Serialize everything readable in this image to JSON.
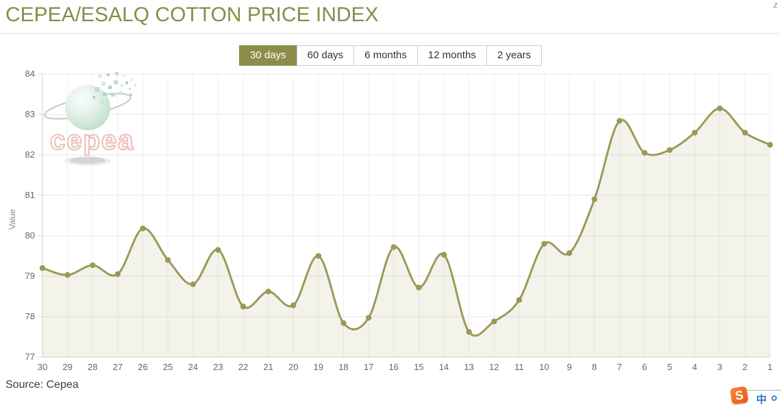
{
  "header": {
    "title": "CEPEA/ESALQ COTTON PRICE INDEX"
  },
  "tabs": [
    {
      "label": "30 days",
      "selected": true
    },
    {
      "label": "60 days",
      "selected": false
    },
    {
      "label": "6 months",
      "selected": false
    },
    {
      "label": "12 months",
      "selected": false
    },
    {
      "label": "2 years",
      "selected": false
    }
  ],
  "logo": {
    "text": "cepea"
  },
  "footer": {
    "source": "Source: Cepea"
  },
  "ime": {
    "s": "S",
    "zh": "中"
  },
  "corner_mark": "z",
  "colors": {
    "accent": "#8d8d4b",
    "title": "#8b8b49",
    "line": "#9a9a58",
    "marker": "#9a9a58",
    "fill": "rgba(154,154,88,0.12)",
    "grid_h": "#e7e7e7",
    "grid_v": "#efefef",
    "axis": "#d0d0d0",
    "tick_text": "#666666",
    "ylabel_text": "#888888"
  },
  "chart_data": {
    "type": "area",
    "title": "CEPEA/ESALQ COTTON PRICE INDEX",
    "xlabel": "",
    "ylabel": "Value",
    "x": [
      30,
      29,
      28,
      27,
      26,
      25,
      24,
      23,
      22,
      21,
      20,
      19,
      18,
      17,
      16,
      15,
      14,
      13,
      12,
      11,
      10,
      9,
      8,
      7,
      6,
      5,
      4,
      3,
      2,
      1
    ],
    "values": [
      79.2,
      79.03,
      79.27,
      79.05,
      80.18,
      79.4,
      78.8,
      79.65,
      78.25,
      78.62,
      78.28,
      79.5,
      77.84,
      77.97,
      79.72,
      78.72,
      79.53,
      77.62,
      77.88,
      78.41,
      79.8,
      79.57,
      80.9,
      82.84,
      82.05,
      82.12,
      82.55,
      83.15,
      82.55,
      82.25
    ],
    "ylim": [
      77,
      84
    ],
    "yticks": [
      77,
      78,
      79,
      80,
      81,
      82,
      83,
      84
    ],
    "grid": true,
    "legend": false,
    "smooth": true
  }
}
